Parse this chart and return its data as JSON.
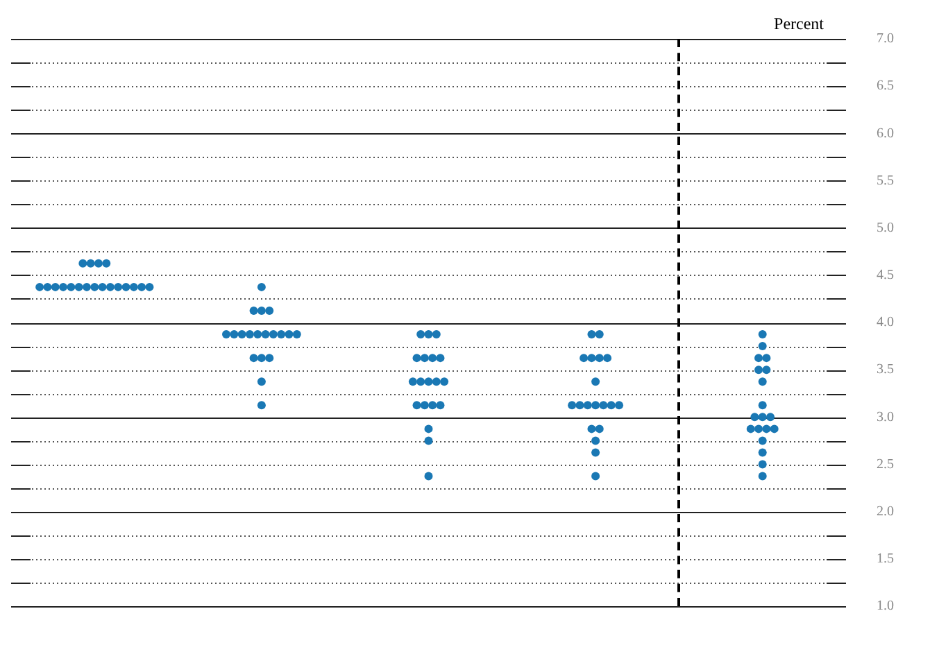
{
  "chart_data": {
    "type": "scatter",
    "ylabel": "Percent",
    "tick_labels": "y",
    "grid": "y",
    "legend": false,
    "marker": "circle",
    "categories": [
      null,
      null,
      null,
      null,
      null
    ],
    "ylim": [
      1,
      7
    ],
    "yticks": [
      {
        "value": 1,
        "label": "1.0"
      },
      {
        "value": 1.25,
        "label": null
      },
      {
        "value": 1.5,
        "label": "1.5"
      },
      {
        "value": 1.75,
        "label": null
      },
      {
        "value": 2,
        "label": "2.0"
      },
      {
        "value": 2.25,
        "label": null
      },
      {
        "value": 2.5,
        "label": "2.5"
      },
      {
        "value": 2.75,
        "label": null
      },
      {
        "value": 3,
        "label": "3.0"
      },
      {
        "value": 3.25,
        "label": null
      },
      {
        "value": 3.5,
        "label": "3.5"
      },
      {
        "value": 3.75,
        "label": null
      },
      {
        "value": 4,
        "label": "4.0"
      },
      {
        "value": 4.25,
        "label": null
      },
      {
        "value": 4.5,
        "label": "4.5"
      },
      {
        "value": 4.75,
        "label": null
      },
      {
        "value": 5,
        "label": "5.0"
      },
      {
        "value": 5.25,
        "label": null
      },
      {
        "value": 5.5,
        "label": "5.5"
      },
      {
        "value": 5.75,
        "label": null
      },
      {
        "value": 6,
        "label": "6.0"
      },
      {
        "value": 6.25,
        "label": null
      },
      {
        "value": 6.5,
        "label": "6.5"
      },
      {
        "value": 6.75,
        "label": null
      },
      {
        "value": 7,
        "label": "7.0"
      }
    ],
    "series": [
      {
        "color": "#1a78b4",
        "values": [
          4.625,
          4.375,
          3.875,
          3.875,
          3.875
        ]
      },
      {
        "color": "#1a78b4",
        "values": [
          4.625,
          4.125,
          3.875,
          3.875,
          3.75
        ]
      },
      {
        "color": "#1a78b4",
        "values": [
          4.625,
          4.125,
          3.875,
          3.625,
          3.625
        ]
      },
      {
        "color": "#1a78b4",
        "values": [
          4.625,
          4.125,
          3.625,
          3.625,
          3.625
        ]
      },
      {
        "color": "#1a78b4",
        "values": [
          4.375,
          3.875,
          3.625,
          3.625,
          3.5
        ]
      },
      {
        "color": "#1a78b4",
        "values": [
          4.375,
          3.875,
          3.625,
          3.625,
          3.5
        ]
      },
      {
        "color": "#1a78b4",
        "values": [
          4.375,
          3.875,
          3.625,
          3.375,
          3.375
        ]
      },
      {
        "color": "#1a78b4",
        "values": [
          4.375,
          3.875,
          3.375,
          3.125,
          3.125
        ]
      },
      {
        "color": "#1a78b4",
        "values": [
          4.375,
          3.875,
          3.375,
          3.125,
          3
        ]
      },
      {
        "color": "#1a78b4",
        "values": [
          4.375,
          3.875,
          3.375,
          3.125,
          3
        ]
      },
      {
        "color": "#1a78b4",
        "values": [
          4.375,
          3.875,
          3.375,
          3.125,
          3
        ]
      },
      {
        "color": "#1a78b4",
        "values": [
          4.375,
          3.875,
          3.375,
          3.125,
          2.875
        ]
      },
      {
        "color": "#1a78b4",
        "values": [
          4.375,
          3.875,
          3.125,
          3.125,
          2.875
        ]
      },
      {
        "color": "#1a78b4",
        "values": [
          4.375,
          3.875,
          3.125,
          3.125,
          2.875
        ]
      },
      {
        "color": "#1a78b4",
        "values": [
          4.375,
          3.625,
          3.125,
          2.875,
          2.875
        ]
      },
      {
        "color": "#1a78b4",
        "values": [
          4.375,
          3.625,
          3.125,
          2.875,
          2.75
        ]
      },
      {
        "color": "#1a78b4",
        "values": [
          4.375,
          3.625,
          2.875,
          2.75,
          2.625
        ]
      },
      {
        "color": "#1a78b4",
        "values": [
          4.375,
          3.375,
          2.75,
          2.625,
          2.5
        ]
      },
      {
        "color": "#1a78b4",
        "values": [
          4.375,
          3.125,
          2.375,
          2.375,
          2.375
        ]
      }
    ]
  }
}
